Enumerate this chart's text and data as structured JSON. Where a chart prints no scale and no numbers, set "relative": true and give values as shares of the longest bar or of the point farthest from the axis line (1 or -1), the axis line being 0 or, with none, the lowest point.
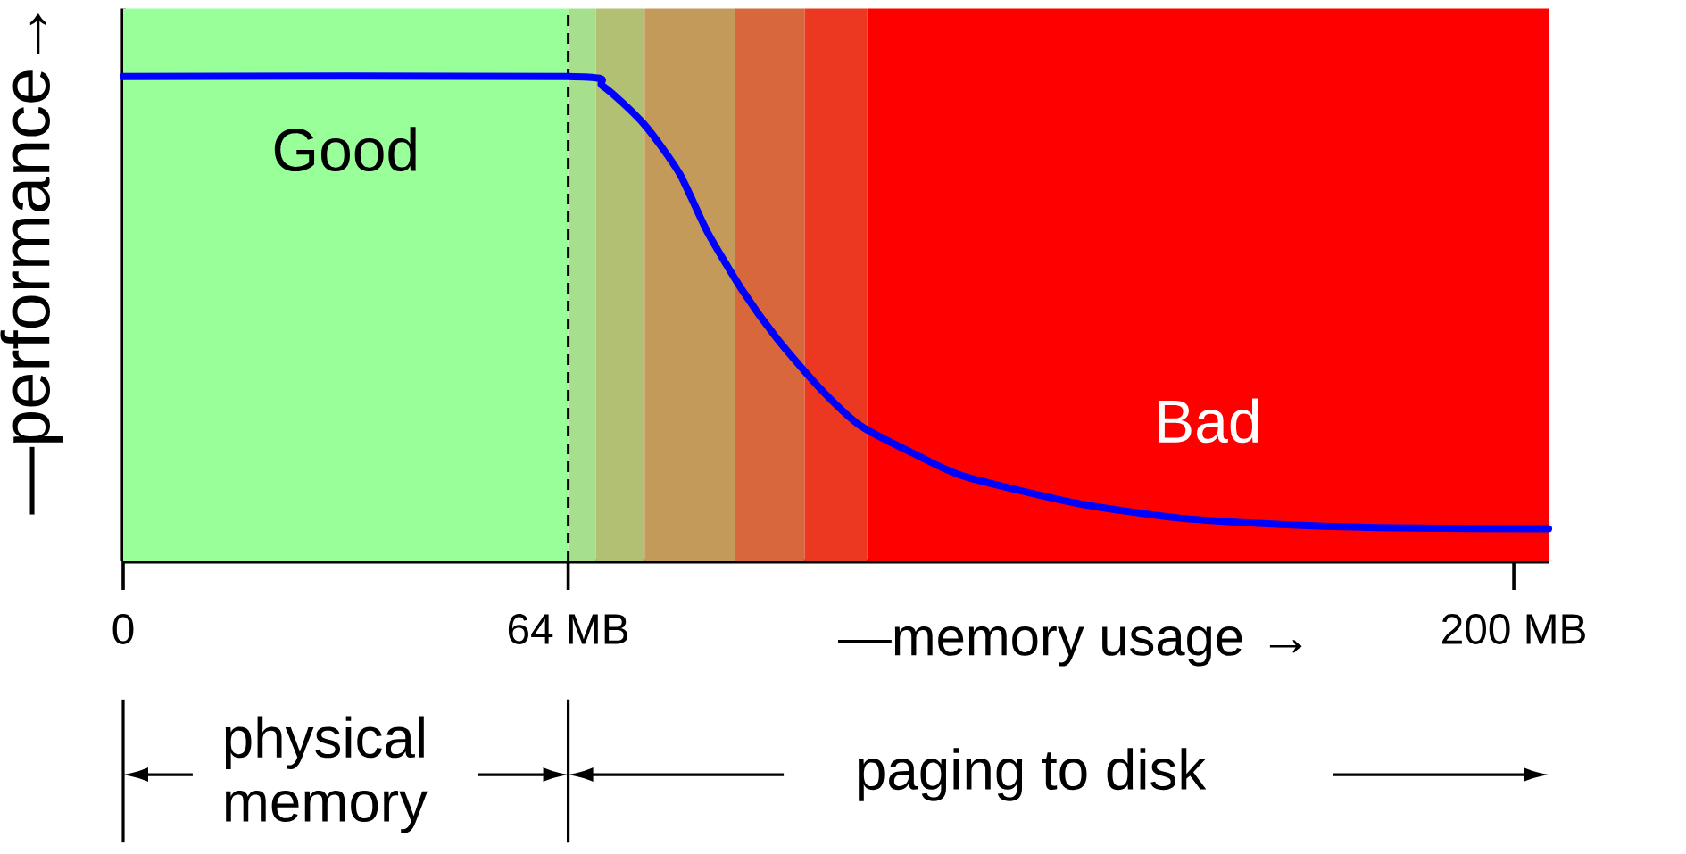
{
  "chart_data": {
    "type": "line",
    "relative": true,
    "xlabel": "—memory usage →",
    "ylabel": "—performance→",
    "xlim": [
      0,
      205
    ],
    "xticks": [
      0,
      {
        "value": 64,
        "label": "64  MB"
      },
      {
        "value": 200,
        "label": "200  MB"
      }
    ],
    "x": [
      0,
      64,
      69,
      75,
      80,
      84,
      89,
      94,
      100,
      106,
      114,
      121,
      137,
      152,
      168,
      183,
      205
    ],
    "series": [
      {
        "color": "#0000ff",
        "values": [
          1,
          1,
          0.98,
          0.9,
          0.8,
          0.68,
          0.56,
          0.46,
          0.36,
          0.28,
          0.22,
          0.175,
          0.12,
          0.089,
          0.075,
          0.069,
          0.067
        ]
      }
    ],
    "bands": [
      {
        "axis": "x",
        "from": 0,
        "to": 64,
        "label": "Good",
        "color": "#99ff99"
      },
      {
        "axis": "x",
        "from": 64,
        "to": 68,
        "color": "#a6e08c"
      },
      {
        "axis": "x",
        "from": 68,
        "to": 75,
        "color": "#b2c074"
      },
      {
        "axis": "x",
        "from": 75,
        "to": 88,
        "color": "#c49a5a"
      },
      {
        "axis": "x",
        "from": 88,
        "to": 98,
        "color": "#d8683c"
      },
      {
        "axis": "x",
        "from": 98,
        "to": 107,
        "color": "#ec3820"
      },
      {
        "axis": "x",
        "from": 107,
        "to": 205,
        "label": "Bad",
        "color": "#ff0000"
      }
    ],
    "ref_lines": [
      {
        "axis": "x",
        "value": 64,
        "color": "#000000",
        "line_style": "dashed"
      }
    ],
    "annotations": [
      "physical memory",
      "paging to disk"
    ],
    "grid": false,
    "marker": "none",
    "line_style": "solid"
  }
}
